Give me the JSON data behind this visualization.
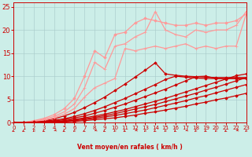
{
  "xlabel": "Vent moyen/en rafales ( km/h )",
  "xlim": [
    0,
    23
  ],
  "ylim": [
    0,
    26
  ],
  "xticks": [
    0,
    1,
    2,
    3,
    4,
    5,
    6,
    7,
    8,
    9,
    10,
    11,
    12,
    13,
    14,
    15,
    16,
    17,
    18,
    19,
    20,
    21,
    22,
    23
  ],
  "yticks": [
    0,
    5,
    10,
    15,
    20,
    25
  ],
  "bg_color": "#cceee8",
  "grid_color": "#aacccc",
  "series": [
    {
      "x": [
        0,
        1,
        2,
        3,
        4,
        5,
        6,
        7,
        8,
        9,
        10,
        11,
        12,
        13,
        14,
        15,
        16,
        17,
        18,
        19,
        20,
        21,
        22,
        23
      ],
      "y": [
        0,
        0,
        0,
        0,
        0,
        0.1,
        0.2,
        0.4,
        0.6,
        0.8,
        1.0,
        1.3,
        1.6,
        2.0,
        2.3,
        2.7,
        3.1,
        3.5,
        4.0,
        4.4,
        4.9,
        5.3,
        5.8,
        6.3
      ],
      "color": "#cc0000",
      "lw": 0.9,
      "marker": "D",
      "ms": 1.8,
      "zorder": 3
    },
    {
      "x": [
        0,
        1,
        2,
        3,
        4,
        5,
        6,
        7,
        8,
        9,
        10,
        11,
        12,
        13,
        14,
        15,
        16,
        17,
        18,
        19,
        20,
        21,
        22,
        23
      ],
      "y": [
        0,
        0,
        0,
        0,
        0.1,
        0.2,
        0.4,
        0.6,
        0.9,
        1.2,
        1.5,
        1.9,
        2.3,
        2.7,
        3.2,
        3.7,
        4.2,
        4.7,
        5.3,
        5.8,
        6.4,
        7.0,
        7.6,
        8.2
      ],
      "color": "#cc0000",
      "lw": 0.9,
      "marker": "D",
      "ms": 1.8,
      "zorder": 3
    },
    {
      "x": [
        0,
        1,
        2,
        3,
        4,
        5,
        6,
        7,
        8,
        9,
        10,
        11,
        12,
        13,
        14,
        15,
        16,
        17,
        18,
        19,
        20,
        21,
        22,
        23
      ],
      "y": [
        0,
        0,
        0,
        0,
        0.1,
        0.3,
        0.5,
        0.8,
        1.1,
        1.5,
        1.9,
        2.4,
        2.9,
        3.4,
        3.9,
        4.5,
        5.1,
        5.7,
        6.3,
        7.0,
        7.6,
        8.3,
        9.0,
        9.7
      ],
      "color": "#cc0000",
      "lw": 0.9,
      "marker": "D",
      "ms": 1.8,
      "zorder": 3
    },
    {
      "x": [
        0,
        1,
        2,
        3,
        4,
        5,
        6,
        7,
        8,
        9,
        10,
        11,
        12,
        13,
        14,
        15,
        16,
        17,
        18,
        19,
        20,
        21,
        22,
        23
      ],
      "y": [
        0,
        0,
        0,
        0.1,
        0.2,
        0.4,
        0.7,
        1.0,
        1.4,
        1.8,
        2.3,
        2.8,
        3.4,
        4.0,
        4.6,
        5.2,
        5.9,
        6.6,
        7.3,
        8.0,
        8.7,
        9.4,
        10.1,
        10.5
      ],
      "color": "#cc0000",
      "lw": 0.9,
      "marker": "D",
      "ms": 1.8,
      "zorder": 3
    },
    {
      "x": [
        0,
        1,
        2,
        3,
        4,
        5,
        6,
        7,
        8,
        9,
        10,
        11,
        12,
        13,
        14,
        15,
        16,
        17,
        18,
        19,
        20,
        21,
        22,
        23
      ],
      "y": [
        0,
        0,
        0.1,
        0.2,
        0.3,
        0.6,
        1.0,
        1.4,
        2.0,
        2.6,
        3.3,
        4.0,
        4.8,
        5.6,
        6.4,
        7.2,
        8.1,
        9.0,
        9.9,
        10.0,
        9.5,
        9.5,
        9.5,
        9.5
      ],
      "color": "#cc0000",
      "lw": 0.9,
      "marker": "D",
      "ms": 1.8,
      "zorder": 3
    },
    {
      "x": [
        0,
        1,
        2,
        3,
        4,
        5,
        6,
        7,
        8,
        9,
        10,
        11,
        12,
        13,
        14,
        15,
        16,
        17,
        18,
        19,
        20,
        21,
        22,
        23
      ],
      "y": [
        0,
        0,
        0.1,
        0.3,
        0.5,
        0.8,
        1.3,
        1.9,
        2.6,
        3.4,
        4.3,
        5.2,
        6.2,
        7.2,
        8.2,
        9.3,
        10.0,
        9.8,
        9.6,
        9.5,
        9.5,
        9.5,
        9.5,
        9.5
      ],
      "color": "#cc0000",
      "lw": 0.9,
      "marker": "D",
      "ms": 1.8,
      "zorder": 2
    },
    {
      "x": [
        0,
        1,
        2,
        3,
        4,
        5,
        6,
        7,
        8,
        9,
        10,
        11,
        12,
        13,
        14,
        15,
        16,
        17,
        18,
        19,
        20,
        21,
        22,
        23
      ],
      "y": [
        0,
        0,
        0.1,
        0.4,
        0.8,
        1.4,
        2.2,
        3.2,
        4.3,
        5.5,
        6.9,
        8.3,
        9.8,
        11.3,
        12.9,
        10.5,
        10.2,
        10.0,
        9.9,
        9.8,
        9.7,
        9.7,
        9.7,
        9.7
      ],
      "color": "#cc0000",
      "lw": 0.9,
      "marker": "D",
      "ms": 1.8,
      "zorder": 2
    },
    {
      "x": [
        0,
        1,
        2,
        3,
        4,
        5,
        6,
        7,
        8,
        9,
        10,
        11,
        12,
        13,
        14,
        15,
        16,
        17,
        18,
        19,
        20,
        21,
        22,
        23
      ],
      "y": [
        0,
        0,
        0.2,
        0.5,
        1.0,
        1.8,
        3.0,
        5.5,
        7.5,
        8.5,
        9.5,
        16.0,
        15.5,
        16.0,
        16.5,
        16.0,
        16.5,
        17.0,
        16.0,
        16.5,
        16.0,
        16.5,
        16.5,
        23.5
      ],
      "color": "#ff9999",
      "lw": 0.9,
      "marker": "+",
      "ms": 3.5,
      "zorder": 2
    },
    {
      "x": [
        0,
        1,
        2,
        3,
        4,
        5,
        6,
        7,
        8,
        9,
        10,
        11,
        12,
        13,
        14,
        15,
        16,
        17,
        18,
        19,
        20,
        21,
        22,
        23
      ],
      "y": [
        0,
        0,
        0.3,
        0.7,
        1.3,
        2.3,
        4.0,
        7.5,
        13.0,
        11.5,
        16.5,
        17.0,
        18.5,
        19.5,
        24.0,
        20.0,
        19.0,
        18.5,
        20.0,
        19.5,
        20.0,
        20.0,
        21.0,
        24.0
      ],
      "color": "#ff9999",
      "lw": 0.9,
      "marker": "+",
      "ms": 3.5,
      "zorder": 2
    },
    {
      "x": [
        0,
        1,
        2,
        3,
        4,
        5,
        6,
        7,
        8,
        9,
        10,
        11,
        12,
        13,
        14,
        15,
        16,
        17,
        18,
        19,
        20,
        21,
        22,
        23
      ],
      "y": [
        0,
        0,
        0.4,
        0.9,
        1.7,
        3.0,
        5.2,
        10.0,
        15.5,
        14.0,
        19.0,
        19.5,
        21.5,
        22.5,
        22.0,
        21.5,
        21.0,
        21.0,
        21.5,
        21.0,
        21.5,
        21.5,
        22.0,
        23.5
      ],
      "color": "#ff9999",
      "lw": 0.9,
      "marker": "D",
      "ms": 1.8,
      "zorder": 2
    }
  ],
  "arrow_color": "#cc0000",
  "arrow_angles": [
    -45,
    -45,
    -30,
    -45,
    -60,
    -45,
    -30,
    -45,
    -60,
    -45,
    -30,
    -45,
    -60,
    -30,
    -45,
    -30,
    -45,
    -60,
    -30,
    -45,
    -30,
    -45,
    -60,
    -30
  ]
}
